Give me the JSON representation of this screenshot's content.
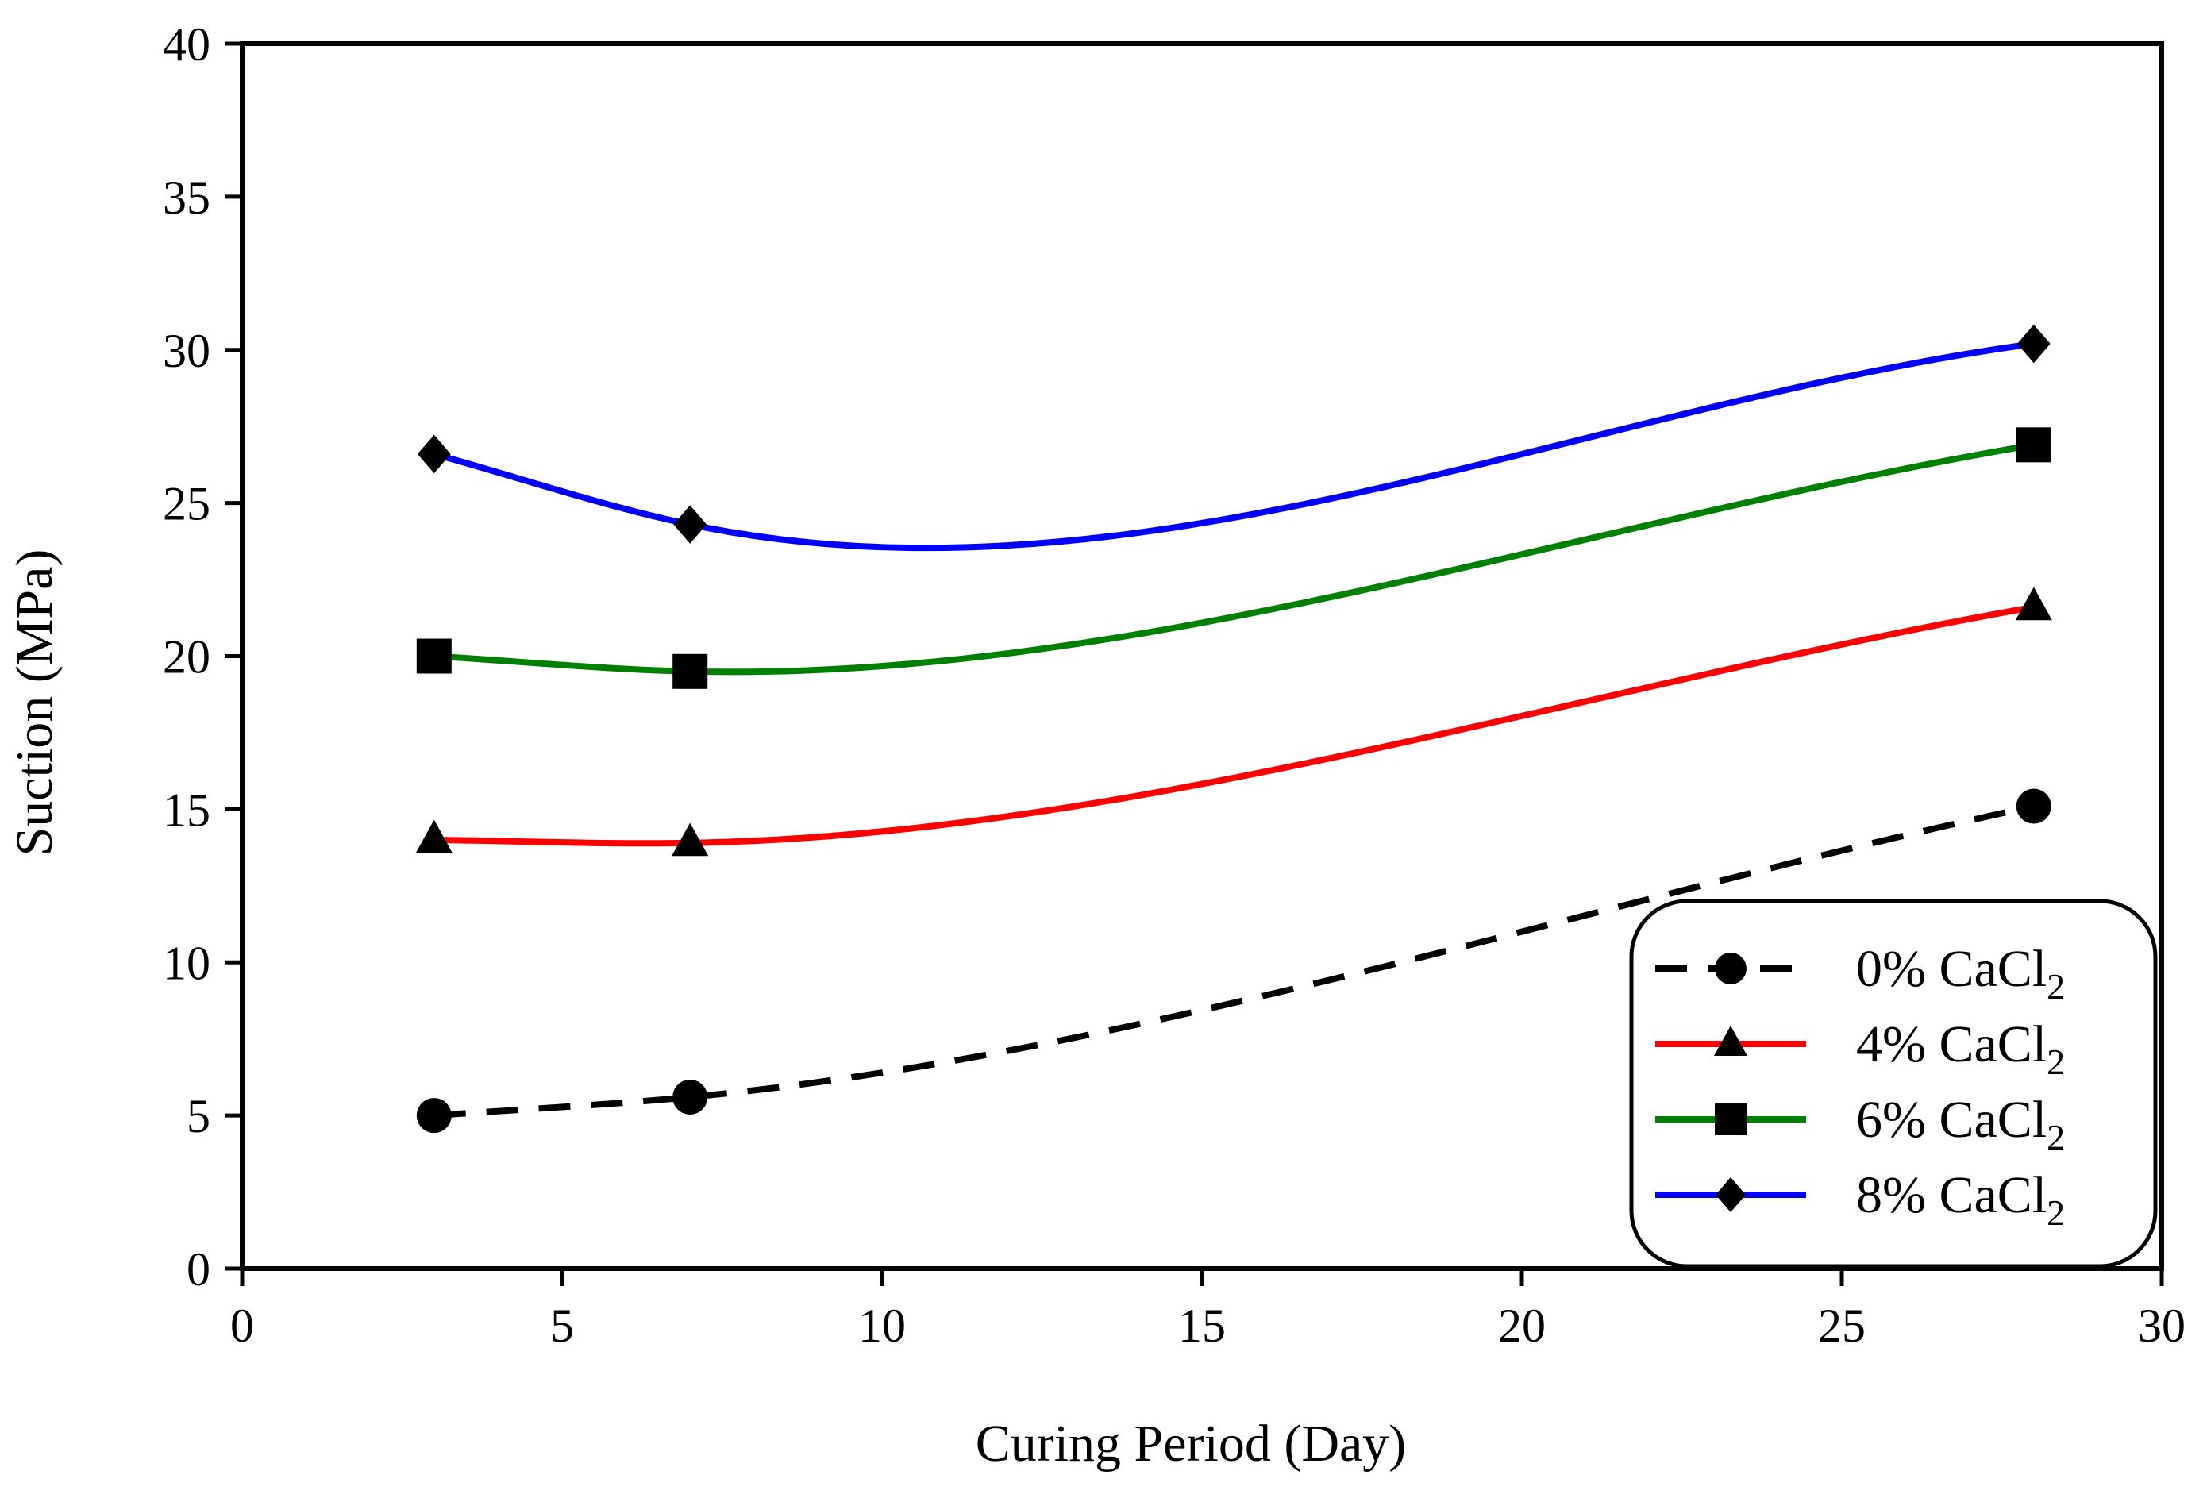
{
  "chart_data": {
    "type": "line",
    "xlabel": "Curing Period (Day)",
    "ylabel": "Suction  (MPa)",
    "xlim": [
      0,
      30
    ],
    "ylim": [
      0,
      40
    ],
    "xticks": [
      "0",
      "5",
      "10",
      "15",
      "20",
      "25",
      "30"
    ],
    "yticks": [
      "0",
      "5",
      "10",
      "15",
      "20",
      "25",
      "30",
      "35",
      "40"
    ],
    "grid": false,
    "legend_position": "bottom-right",
    "x": [
      3,
      7,
      28
    ],
    "series": [
      {
        "name": "0% CaCl",
        "subscript": "2",
        "values": [
          5.0,
          5.6,
          15.1
        ],
        "color": "#000000",
        "dash": "dashed",
        "marker": "circle"
      },
      {
        "name": "4% CaCl",
        "subscript": "2",
        "values": [
          14.0,
          13.9,
          21.6
        ],
        "color": "#ff0000",
        "dash": "solid",
        "marker": "triangle"
      },
      {
        "name": "6% CaCl",
        "subscript": "2",
        "values": [
          20.0,
          19.5,
          26.9
        ],
        "color": "#008000",
        "dash": "solid",
        "marker": "square"
      },
      {
        "name": "8% CaCl",
        "subscript": "2",
        "values": [
          26.6,
          24.3,
          30.2
        ],
        "color": "#0000ff",
        "dash": "solid",
        "marker": "diamond"
      }
    ]
  }
}
